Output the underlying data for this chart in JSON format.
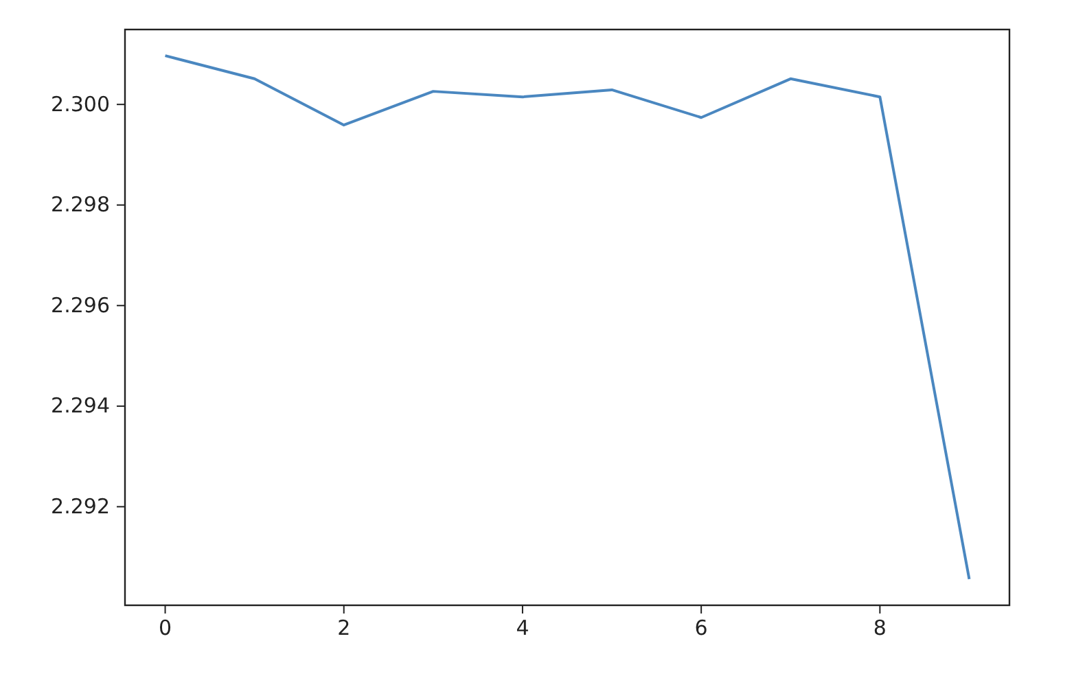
{
  "chart_data": {
    "type": "line",
    "x": [
      0,
      1,
      2,
      3,
      4,
      5,
      6,
      7,
      8,
      9
    ],
    "series": [
      {
        "color": "#4a87c0",
        "values": [
          2.30097,
          2.30051,
          2.29959,
          2.30026,
          2.30015,
          2.30029,
          2.29974,
          2.30051,
          2.30015,
          2.29056
        ]
      }
    ],
    "xlim": [
      -0.45,
      9.45
    ],
    "ylim": [
      2.29004,
      2.30149
    ],
    "xticks": [
      0,
      2,
      4,
      6,
      8
    ],
    "yticks": [
      {
        "value": 2.292,
        "label": "2.292"
      },
      {
        "value": 2.294,
        "label": "2.294"
      },
      {
        "value": 2.296,
        "label": "2.296"
      },
      {
        "value": 2.298,
        "label": "2.298"
      },
      {
        "value": 2.3,
        "label": "2.300"
      }
    ],
    "grid": false,
    "marker": "none",
    "line_style": "solid"
  }
}
